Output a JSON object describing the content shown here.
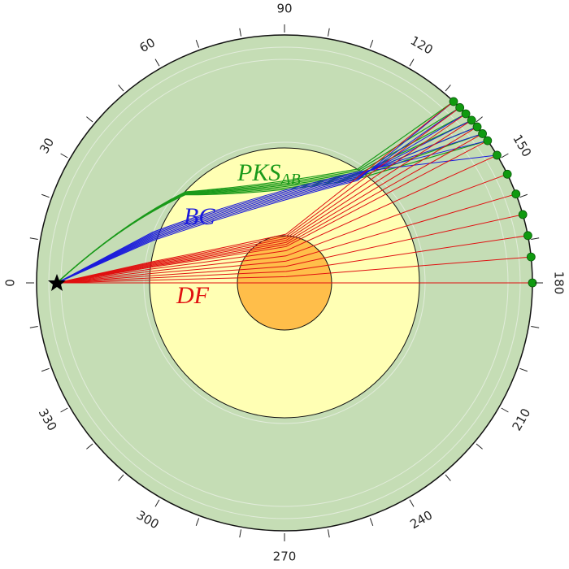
{
  "axis": {
    "labels": [
      0,
      30,
      60,
      90,
      120,
      150,
      180,
      210,
      240,
      270,
      300,
      330
    ]
  },
  "phases": {
    "pks": "PKS",
    "pks_sub": "AB",
    "bc": "BC",
    "df": "DF"
  }
}
